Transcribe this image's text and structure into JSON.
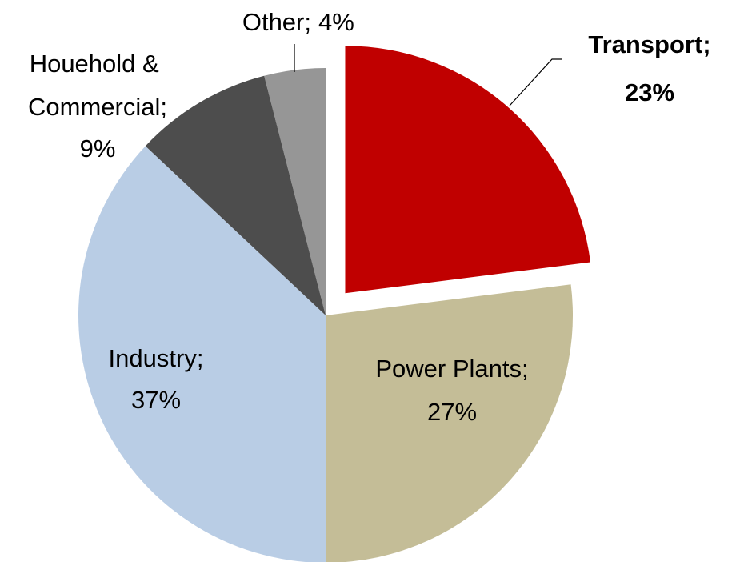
{
  "chart_data": {
    "type": "pie",
    "categories": [
      "Transport;",
      "Power Plants;",
      "Industry;",
      "Houehold & Commercial;",
      "Other;"
    ],
    "values": [
      23,
      27,
      37,
      9,
      4
    ],
    "value_labels": [
      "23%",
      "27%",
      "37%",
      "9%",
      "4%"
    ],
    "colors": [
      "#c00000",
      "#c4bd97",
      "#b9cde5",
      "#4d4d4d",
      "#969696"
    ],
    "explode_index": 0
  }
}
